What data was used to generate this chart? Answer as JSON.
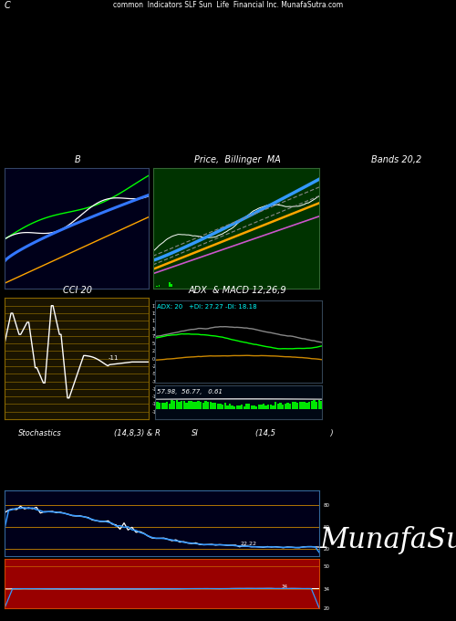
{
  "title_top": "common  Indicators SLF Sun  Life  Financial Inc. MunafaSutra.com",
  "title_c": "C",
  "bg_color": "#000000",
  "panel_b_bg": "#00001a",
  "panel_price_bg": "#003300",
  "panel_cci_bg": "#1a1400",
  "panel_adx_bg": "#000000",
  "panel_adx2_bg": "#000814",
  "panel_stoch_bg": "#00001a",
  "panel_si_bg": "#660000",
  "panel1_title": "B",
  "panel2_title": "Price,  Billinger  MA",
  "panel3_title": "Bands 20,2",
  "panel4_title": "CCI 20",
  "panel5_title": "ADX  & MACD 12,26,9",
  "panel6_title": "Stochastics",
  "panel6_params": "(14,8,3) & R",
  "panel7_title": "SI",
  "panel7_params": "(14,5                       )",
  "watermark": "MunafaSutra.com",
  "adx_label": "ADX: 20   +DI: 27.27 -DI: 18.18",
  "stoch_label": "57.98,  56.77,   0.61"
}
